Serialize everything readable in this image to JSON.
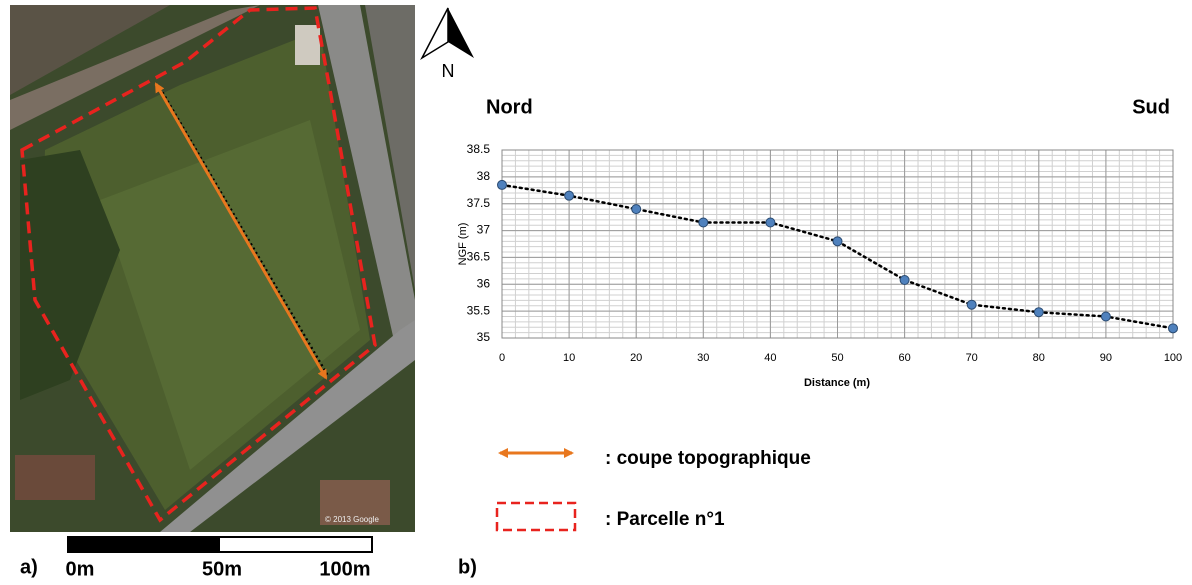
{
  "chart_data": {
    "type": "line",
    "left_label": "Nord",
    "right_label": "Sud",
    "xlabel": "Distance (m)",
    "ylabel": "NGF (m)",
    "x": [
      0,
      10,
      20,
      30,
      40,
      50,
      60,
      70,
      80,
      90,
      100
    ],
    "values": [
      37.85,
      37.65,
      37.4,
      37.15,
      37.15,
      36.8,
      36.08,
      35.62,
      35.48,
      35.4,
      35.18
    ],
    "color": "#4f81bd",
    "xlim": [
      0,
      100
    ],
    "xticks": [
      0,
      10,
      20,
      30,
      40,
      50,
      60,
      70,
      80,
      90,
      100
    ],
    "ylim": [
      35,
      38.5
    ],
    "yticks": [
      35,
      35.5,
      36,
      36.5,
      37,
      37.5,
      38,
      38.5
    ],
    "grid": true,
    "minor_grid": {
      "x": 2,
      "y": 0.1
    }
  },
  "figure": {
    "panel_a_label": "a)",
    "panel_b_label": "b)",
    "north": "N",
    "scale_labels": [
      "0m",
      "50m",
      "100m"
    ],
    "legend": [
      ": coupe topographique",
      ": Parcelle n°1"
    ],
    "map_credit": "© 2013 Google"
  }
}
